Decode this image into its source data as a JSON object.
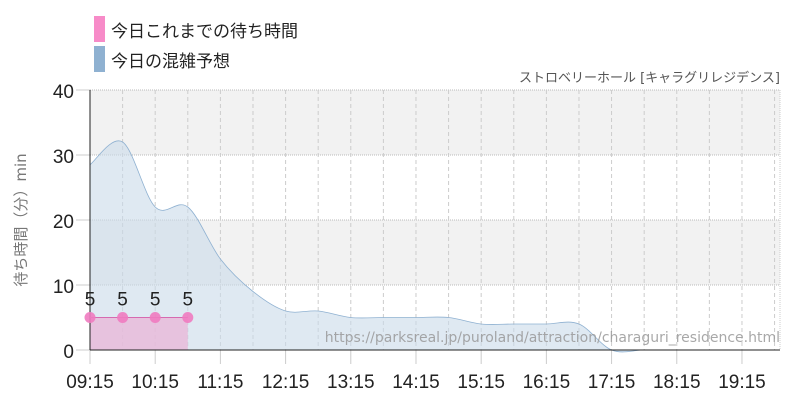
{
  "chart_data": {
    "type": "area",
    "title": "ストロベリーホール [キャラグリレジデンス]",
    "ylabel": "待ち時間（分）min",
    "xlabel": "",
    "ylim": [
      0,
      40
    ],
    "yticks": [
      "0",
      "10",
      "20",
      "30",
      "40"
    ],
    "xticks": [
      "09:15",
      "10:15",
      "11:15",
      "12:15",
      "13:15",
      "14:15",
      "15:15",
      "16:15",
      "17:15",
      "18:15",
      "19:15"
    ],
    "xrange": [
      "09:15",
      "19:50"
    ],
    "grid": true,
    "legend_position": "top-left",
    "watermark": "https://parksreal.jp/puroland/attraction/charaguri_residence.html",
    "series": [
      {
        "name": "今日これまでの待ち時間",
        "color": "#f78bc8",
        "x": [
          "09:15",
          "09:45",
          "10:15",
          "10:45"
        ],
        "values": [
          5,
          5,
          5,
          5
        ],
        "labels": [
          "5",
          "5",
          "5",
          "5"
        ]
      },
      {
        "name": "今日の混雑予想",
        "color": "#8fb1d1",
        "x": [
          "09:15",
          "09:45",
          "10:15",
          "10:45",
          "11:15",
          "11:45",
          "12:15",
          "12:45",
          "13:15",
          "13:45",
          "14:15",
          "14:45",
          "15:15",
          "15:45",
          "16:15",
          "16:45",
          "17:15",
          "17:45",
          "18:15",
          "18:45",
          "19:15",
          "19:45"
        ],
        "values": [
          28.5,
          32,
          22,
          22,
          14,
          9,
          6,
          6,
          5,
          5,
          5,
          5,
          4,
          4,
          4,
          4,
          0,
          0,
          0,
          0,
          0,
          0
        ]
      }
    ]
  }
}
